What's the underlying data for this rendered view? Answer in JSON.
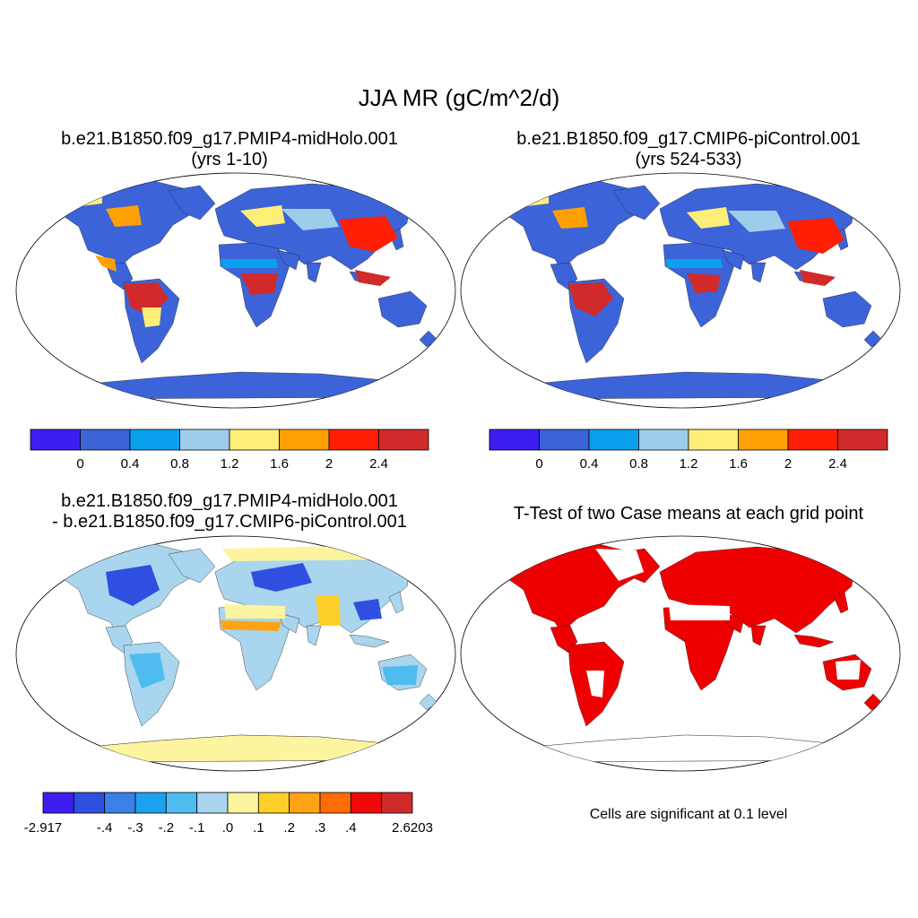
{
  "figure_title": "JJA MR (gC/m^2/d)",
  "panels": [
    {
      "title": "b.e21.B1850.f09_g17.PMIP4-midHolo.001",
      "subtitle": "(yrs 1-10)"
    },
    {
      "title": "b.e21.B1850.f09_g17.CMIP6-piControl.001",
      "subtitle": "(yrs 524-533)"
    },
    {
      "title": "b.e21.B1850.f09_g17.PMIP4-midHolo.001",
      "subtitle": "- b.e21.B1850.f09_g17.CMIP6-piControl.001"
    },
    {
      "title": "T-Test of two Case means at each grid point",
      "subtitle": ""
    }
  ],
  "colorbar_abs": {
    "colors": [
      "#3c1ff0",
      "#3d63d9",
      "#0aa0ee",
      "#9ecdeb",
      "#fdee78",
      "#fea003",
      "#ff1f05",
      "#d12a2a"
    ],
    "labels": [
      "0",
      "0.4",
      "0.8",
      "1.2",
      "1.6",
      "2",
      "2.4"
    ]
  },
  "colorbar_diff": {
    "colors": [
      "#3c1ff0",
      "#2e4fe0",
      "#3a80e6",
      "#1ba1ee",
      "#4fbcf0",
      "#a9d5ee",
      "#fdf4a0",
      "#fecf28",
      "#fea414",
      "#ff6b05",
      "#ee0a0a",
      "#cf2a2a"
    ],
    "labels": [
      "-2.917",
      "-.4",
      "-.3",
      "-.2",
      "-.1",
      ".0",
      ".1",
      ".2",
      ".3",
      ".4",
      "2.6203"
    ]
  },
  "significance_color": "#ef0000",
  "significance_note": "Cells are significant at 0.1 level",
  "map_colors": {
    "ocean": "#ffffff",
    "abs_base": "#3d63d9",
    "diff_base": "#a9d5ee",
    "antarctica_diff": "#fdf4a0"
  }
}
